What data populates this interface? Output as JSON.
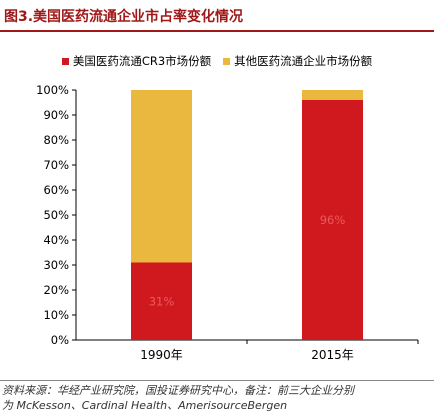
{
  "title": "图3.美国医药流通企业市占率变化情况",
  "source_line1": "资料来源：华经产业研究院，国投证券研究中心，备注：前三大企业分别",
  "source_line2": "为 McKesson、Cardinal Health、AmerisourceBergen",
  "chart_data": {
    "type": "bar",
    "stacked": true,
    "categories": [
      "1990年",
      "2015年"
    ],
    "series": [
      {
        "name": "美国医药流通CR3市场份额",
        "color": "#d0191e",
        "values": [
          31,
          96
        ],
        "labels": [
          "31%",
          "96%"
        ]
      },
      {
        "name": "其他医药流通企业市场份额",
        "color": "#eab83f",
        "values": [
          69,
          4
        ],
        "labels": [
          "",
          ""
        ]
      }
    ],
    "yticks": [
      "0%",
      "10%",
      "20%",
      "30%",
      "40%",
      "50%",
      "60%",
      "70%",
      "80%",
      "90%",
      "100%"
    ],
    "ylim": [
      0,
      100
    ],
    "grid": false,
    "legend": "top-center"
  }
}
